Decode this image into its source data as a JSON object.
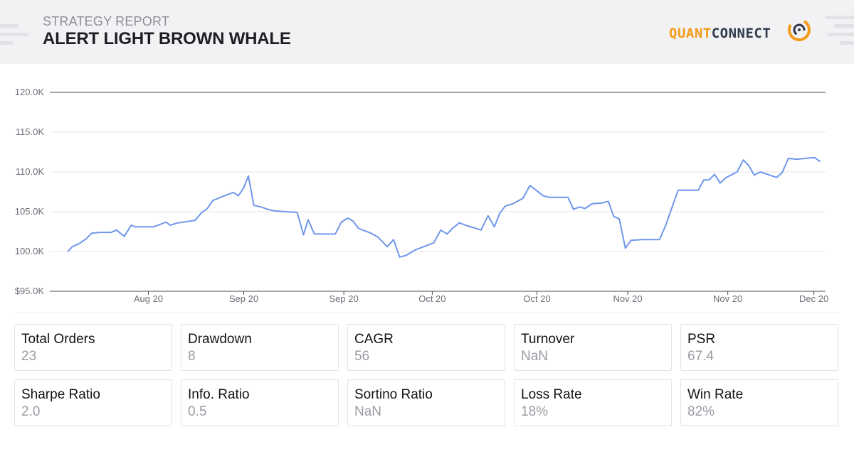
{
  "header": {
    "subtitle": "STRATEGY REPORT",
    "title": "ALERT LIGHT BROWN WHALE",
    "logo_part1": "QUANT",
    "logo_part2": "CONNECT"
  },
  "colors": {
    "line": "#6f97ea",
    "grid": "#e4e4e8",
    "axis": "#4a4a4a",
    "header_bg": "#f2f2f4",
    "logo_orange": "#f49b1a",
    "logo_dark": "#2f3a4c"
  },
  "chart_data": {
    "type": "line",
    "title": "",
    "xlabel": "",
    "ylabel": "",
    "ylim": [
      95000,
      120000
    ],
    "y_ticks": [
      {
        "value": 120000,
        "label": "120.0K"
      },
      {
        "value": 115000,
        "label": "115.0K"
      },
      {
        "value": 110000,
        "label": "110.0K"
      },
      {
        "value": 105000,
        "label": "105.0K"
      },
      {
        "value": 100000,
        "label": "100.0K"
      },
      {
        "value": 95000,
        "label": "$95.0K"
      }
    ],
    "xlim": [
      0,
      100
    ],
    "x_ticks": [
      {
        "value": 12.7,
        "label": "Aug 20"
      },
      {
        "value": 25.0,
        "label": "Sep 20"
      },
      {
        "value": 37.9,
        "label": "Sep 20"
      },
      {
        "value": 49.3,
        "label": "Oct 20"
      },
      {
        "value": 62.8,
        "label": "Oct 20"
      },
      {
        "value": 74.5,
        "label": "Nov 20"
      },
      {
        "value": 87.4,
        "label": "Nov 20"
      },
      {
        "value": 98.5,
        "label": "Dec 20"
      }
    ],
    "grid": true,
    "legend": "none",
    "series": [
      {
        "points": [
          [
            2.3,
            100000
          ],
          [
            2.9,
            100600
          ],
          [
            3.8,
            101000
          ],
          [
            4.7,
            101600
          ],
          [
            5.4,
            102300
          ],
          [
            6.4,
            102400
          ],
          [
            7.9,
            102400
          ],
          [
            8.6,
            102700
          ],
          [
            9.6,
            101900
          ],
          [
            10.5,
            103300
          ],
          [
            11.0,
            103100
          ],
          [
            12.5,
            103100
          ],
          [
            13.4,
            103100
          ],
          [
            14.2,
            103400
          ],
          [
            15.0,
            103700
          ],
          [
            15.5,
            103300
          ],
          [
            16.5,
            103600
          ],
          [
            18.7,
            103900
          ],
          [
            19.6,
            104900
          ],
          [
            20.3,
            105400
          ],
          [
            21.0,
            106400
          ],
          [
            22.0,
            106800
          ],
          [
            23.0,
            107200
          ],
          [
            23.7,
            107400
          ],
          [
            24.3,
            107000
          ],
          [
            25.0,
            108000
          ],
          [
            25.6,
            109500
          ],
          [
            26.3,
            105800
          ],
          [
            27.2,
            105600
          ],
          [
            28.1,
            105300
          ],
          [
            29.0,
            105100
          ],
          [
            31.9,
            104900
          ],
          [
            32.7,
            102100
          ],
          [
            33.3,
            104000
          ],
          [
            34.1,
            102200
          ],
          [
            36.1,
            102200
          ],
          [
            36.8,
            102200
          ],
          [
            37.6,
            103700
          ],
          [
            38.4,
            104200
          ],
          [
            39.1,
            103800
          ],
          [
            39.8,
            102900
          ],
          [
            41.4,
            102300
          ],
          [
            42.3,
            101800
          ],
          [
            43.5,
            100600
          ],
          [
            44.3,
            101500
          ],
          [
            45.1,
            99300
          ],
          [
            45.9,
            99500
          ],
          [
            47.1,
            100200
          ],
          [
            49.5,
            101100
          ],
          [
            50.4,
            102700
          ],
          [
            51.2,
            102200
          ],
          [
            51.9,
            102900
          ],
          [
            52.8,
            103600
          ],
          [
            53.6,
            103300
          ],
          [
            55.6,
            102700
          ],
          [
            56.5,
            104500
          ],
          [
            57.3,
            103100
          ],
          [
            58.0,
            104800
          ],
          [
            58.7,
            105700
          ],
          [
            59.7,
            106000
          ],
          [
            61.0,
            106700
          ],
          [
            61.9,
            108300
          ],
          [
            62.7,
            107700
          ],
          [
            63.6,
            107000
          ],
          [
            64.4,
            106800
          ],
          [
            65.8,
            106800
          ],
          [
            66.8,
            106800
          ],
          [
            67.5,
            105300
          ],
          [
            68.3,
            105600
          ],
          [
            69.0,
            105400
          ],
          [
            69.9,
            106000
          ],
          [
            71.2,
            106100
          ],
          [
            72.0,
            106300
          ],
          [
            72.7,
            104400
          ],
          [
            73.4,
            104100
          ],
          [
            74.2,
            100400
          ],
          [
            74.9,
            101400
          ],
          [
            76.3,
            101500
          ],
          [
            77.4,
            101500
          ],
          [
            78.6,
            101500
          ],
          [
            79.4,
            103300
          ],
          [
            80.3,
            105800
          ],
          [
            81.0,
            107700
          ],
          [
            83.3,
            107700
          ],
          [
            83.6,
            107700
          ],
          [
            84.3,
            109000
          ],
          [
            85.0,
            109000
          ],
          [
            85.7,
            109700
          ],
          [
            86.4,
            108600
          ],
          [
            87.2,
            109300
          ],
          [
            88.6,
            110000
          ],
          [
            89.4,
            111500
          ],
          [
            90.1,
            110800
          ],
          [
            90.8,
            109600
          ],
          [
            91.6,
            110000
          ],
          [
            93.7,
            109300
          ],
          [
            94.4,
            109900
          ],
          [
            95.2,
            111700
          ],
          [
            96.3,
            111600
          ],
          [
            97.3,
            111700
          ],
          [
            98.6,
            111800
          ],
          [
            99.3,
            111300
          ]
        ]
      }
    ]
  },
  "stats": [
    {
      "label": "Total Orders",
      "value": "23"
    },
    {
      "label": "Drawdown",
      "value": "8"
    },
    {
      "label": "CAGR",
      "value": "56"
    },
    {
      "label": "Turnover",
      "value": "NaN"
    },
    {
      "label": "PSR",
      "value": "67.4"
    },
    {
      "label": "Sharpe Ratio",
      "value": "2.0"
    },
    {
      "label": "Info. Ratio",
      "value": "0.5"
    },
    {
      "label": "Sortino Ratio",
      "value": "NaN"
    },
    {
      "label": "Loss Rate",
      "value": "18%"
    },
    {
      "label": "Win Rate",
      "value": "82%"
    }
  ]
}
